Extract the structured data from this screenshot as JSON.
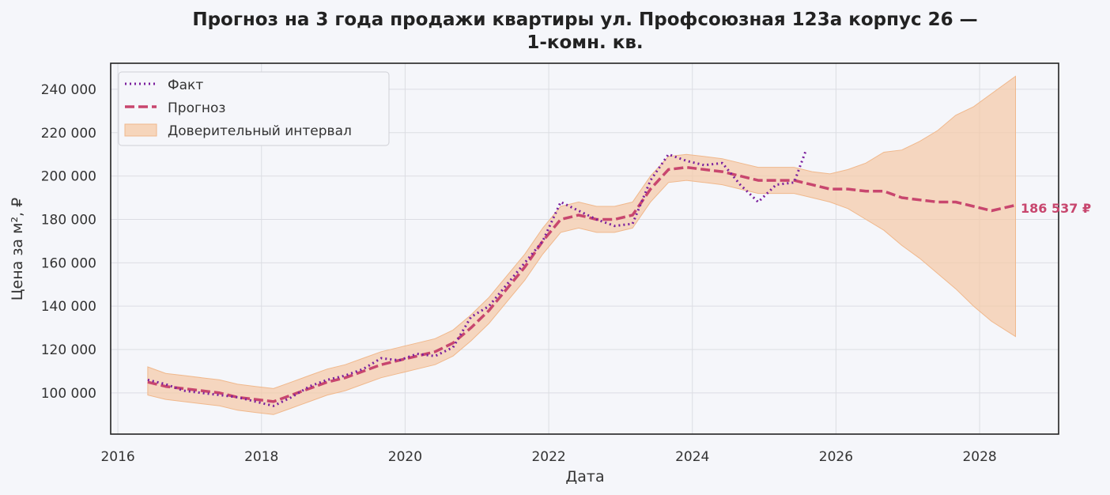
{
  "chart_data": {
    "type": "line",
    "title_line1": "Прогноз на 3 года продажи квартиры  ул. Профсоюзная 123а корпус 26 —",
    "title_line2": "1-комн. кв.",
    "xlabel": "Дата",
    "ylabel": "Цена за м², ₽",
    "x_ticks": [
      "2016",
      "2018",
      "2020",
      "2022",
      "2024",
      "2026",
      "2028"
    ],
    "y_ticks": [
      "100 000",
      "120 000",
      "140 000",
      "160 000",
      "180 000",
      "200 000",
      "220 000",
      "240 000"
    ],
    "xlim": [
      2015.9,
      2029.1
    ],
    "ylim": [
      81000,
      252000
    ],
    "grid": true,
    "legend_position": "top-left",
    "legend": [
      "Факт",
      "Прогноз",
      "Доверительный интервал"
    ],
    "end_label": "186 537 ₽",
    "colors": {
      "fact": "#7a1f9e",
      "forecast": "#c8466e",
      "interval": "#f5c9a5",
      "background": "#f5f6fa",
      "grid": "#dcdde3",
      "frame": "#222222"
    },
    "series": [
      {
        "name": "Факт",
        "style": "dotted",
        "x": [
          "2016-06",
          "2016-09",
          "2016-12",
          "2017-03",
          "2017-06",
          "2017-09",
          "2017-12",
          "2018-03",
          "2018-06",
          "2018-09",
          "2018-12",
          "2019-03",
          "2019-06",
          "2019-09",
          "2019-12",
          "2020-03",
          "2020-06",
          "2020-09",
          "2020-12",
          "2021-03",
          "2021-06",
          "2021-09",
          "2021-12",
          "2022-03",
          "2022-06",
          "2022-09",
          "2022-12",
          "2023-03",
          "2023-06",
          "2023-09",
          "2023-12",
          "2024-03",
          "2024-06",
          "2024-09",
          "2024-12",
          "2025-03",
          "2025-06",
          "2025-08"
        ],
        "y": [
          106000,
          104000,
          101000,
          100000,
          99000,
          98000,
          96000,
          94000,
          98000,
          103000,
          106000,
          108000,
          111000,
          116000,
          115000,
          118000,
          117000,
          121000,
          135000,
          140000,
          150000,
          160000,
          170000,
          188000,
          184000,
          180000,
          177000,
          178000,
          198000,
          210000,
          207000,
          205000,
          206000,
          196000,
          188000,
          196000,
          197000,
          212000
        ]
      },
      {
        "name": "Прогноз",
        "style": "dashed",
        "x": [
          "2016-06",
          "2016-09",
          "2016-12",
          "2017-03",
          "2017-06",
          "2017-09",
          "2017-12",
          "2018-03",
          "2018-06",
          "2018-09",
          "2018-12",
          "2019-03",
          "2019-06",
          "2019-09",
          "2019-12",
          "2020-03",
          "2020-06",
          "2020-09",
          "2020-12",
          "2021-03",
          "2021-06",
          "2021-09",
          "2021-12",
          "2022-03",
          "2022-06",
          "2022-09",
          "2022-12",
          "2023-03",
          "2023-06",
          "2023-09",
          "2023-12",
          "2024-03",
          "2024-06",
          "2024-09",
          "2024-12",
          "2025-03",
          "2025-06",
          "2025-09",
          "2025-12",
          "2026-03",
          "2026-06",
          "2026-09",
          "2026-12",
          "2027-03",
          "2027-06",
          "2027-09",
          "2027-12",
          "2028-03",
          "2028-07"
        ],
        "y": [
          105000,
          103000,
          102000,
          101000,
          100000,
          98000,
          97000,
          96000,
          99000,
          102000,
          105000,
          107000,
          110000,
          113000,
          115000,
          117000,
          119000,
          123000,
          130000,
          138000,
          148000,
          158000,
          170000,
          180000,
          182000,
          180000,
          180000,
          182000,
          194000,
          203000,
          204000,
          203000,
          202000,
          200000,
          198000,
          198000,
          198000,
          196000,
          194000,
          194000,
          193000,
          193000,
          190000,
          189000,
          188000,
          188000,
          186000,
          184000,
          186537
        ]
      }
    ],
    "interval": {
      "name": "Доверительный интервал",
      "x": [
        "2016-06",
        "2016-09",
        "2016-12",
        "2017-03",
        "2017-06",
        "2017-09",
        "2017-12",
        "2018-03",
        "2018-06",
        "2018-09",
        "2018-12",
        "2019-03",
        "2019-06",
        "2019-09",
        "2019-12",
        "2020-03",
        "2020-06",
        "2020-09",
        "2020-12",
        "2021-03",
        "2021-06",
        "2021-09",
        "2021-12",
        "2022-03",
        "2022-06",
        "2022-09",
        "2022-12",
        "2023-03",
        "2023-06",
        "2023-09",
        "2023-12",
        "2024-03",
        "2024-06",
        "2024-09",
        "2024-12",
        "2025-03",
        "2025-06",
        "2025-09",
        "2025-12",
        "2026-03",
        "2026-06",
        "2026-09",
        "2026-12",
        "2027-03",
        "2027-06",
        "2027-09",
        "2027-12",
        "2028-03",
        "2028-07"
      ],
      "lower": [
        99000,
        97000,
        96000,
        95000,
        94000,
        92000,
        91000,
        90000,
        93000,
        96000,
        99000,
        101000,
        104000,
        107000,
        109000,
        111000,
        113000,
        117000,
        124000,
        132000,
        142000,
        152000,
        164000,
        174000,
        176000,
        174000,
        174000,
        176000,
        188000,
        197000,
        198000,
        197000,
        196000,
        194000,
        192000,
        192000,
        192000,
        190000,
        188000,
        185000,
        180000,
        175000,
        168000,
        162000,
        155000,
        148000,
        140000,
        133000,
        126000
      ],
      "upper": [
        112000,
        109000,
        108000,
        107000,
        106000,
        104000,
        103000,
        102000,
        105000,
        108000,
        111000,
        113000,
        116000,
        119000,
        121000,
        123000,
        125000,
        129000,
        136000,
        144000,
        154000,
        164000,
        176000,
        186000,
        188000,
        186000,
        186000,
        188000,
        200000,
        209000,
        210000,
        209000,
        208000,
        206000,
        204000,
        204000,
        204000,
        202000,
        201000,
        203000,
        206000,
        211000,
        212000,
        216000,
        221000,
        228000,
        232000,
        238000,
        246000
      ]
    }
  }
}
